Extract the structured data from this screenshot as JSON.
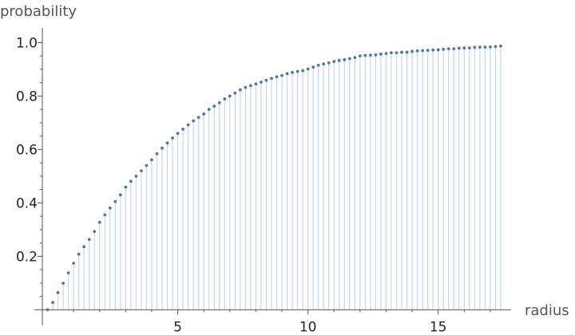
{
  "chart_data": {
    "type": "scatter",
    "style": "discrete points with vertical stems (filled to axis)",
    "xlabel": "radius",
    "ylabel": "probability",
    "xlim": [
      -0.2,
      17.8
    ],
    "ylim": [
      -0.005,
      1.04
    ],
    "x_ticks": [
      5,
      10,
      15
    ],
    "y_ticks": [
      0.2,
      0.4,
      0.6,
      0.8,
      1.0
    ],
    "x_tick_labels": [
      "5",
      "10",
      "15"
    ],
    "y_tick_labels": [
      "0.2",
      "0.4",
      "0.6",
      "0.8",
      "1.0"
    ],
    "series": [
      {
        "color": "#4c78a8",
        "x": [
          0.0,
          0.2,
          0.4,
          0.6,
          0.8,
          1.0,
          1.2,
          1.4,
          1.6,
          1.8,
          2.0,
          2.2,
          2.4,
          2.6,
          2.8,
          3.0,
          3.2,
          3.4,
          3.6,
          3.8,
          4.0,
          4.2,
          4.4,
          4.6,
          4.8,
          5.0,
          5.2,
          5.4,
          5.6,
          5.8,
          6.0,
          6.2,
          6.4,
          6.6,
          6.8,
          7.0,
          7.2,
          7.4,
          7.6,
          7.8,
          8.0,
          8.2,
          8.4,
          8.6,
          8.8,
          9.0,
          9.2,
          9.4,
          9.6,
          9.8,
          10.0,
          10.2,
          10.4,
          10.6,
          10.8,
          11.0,
          11.2,
          11.4,
          11.6,
          11.8,
          12.0,
          12.2,
          12.4,
          12.6,
          12.8,
          13.0,
          13.2,
          13.4,
          13.6,
          13.8,
          14.0,
          14.2,
          14.4,
          14.6,
          14.8,
          15.0,
          15.2,
          15.4,
          15.6,
          15.8,
          16.0,
          16.2,
          16.4,
          16.6,
          16.8,
          17.0,
          17.2,
          17.4
        ],
        "y": [
          0.0,
          0.027,
          0.064,
          0.099,
          0.138,
          0.174,
          0.208,
          0.236,
          0.263,
          0.293,
          0.327,
          0.355,
          0.381,
          0.405,
          0.43,
          0.459,
          0.481,
          0.5,
          0.52,
          0.54,
          0.561,
          0.584,
          0.605,
          0.624,
          0.643,
          0.66,
          0.676,
          0.692,
          0.707,
          0.72,
          0.733,
          0.75,
          0.762,
          0.775,
          0.789,
          0.8,
          0.811,
          0.823,
          0.832,
          0.839,
          0.845,
          0.852,
          0.859,
          0.866,
          0.872,
          0.877,
          0.884,
          0.888,
          0.892,
          0.895,
          0.901,
          0.908,
          0.915,
          0.92,
          0.924,
          0.929,
          0.933,
          0.936,
          0.94,
          0.944,
          0.95,
          0.952,
          0.953,
          0.954,
          0.957,
          0.959,
          0.962,
          0.962,
          0.964,
          0.964,
          0.967,
          0.969,
          0.97,
          0.971,
          0.972,
          0.973,
          0.975,
          0.977,
          0.977,
          0.979,
          0.98,
          0.98,
          0.982,
          0.983,
          0.983,
          0.984,
          0.985,
          0.987
        ]
      }
    ]
  }
}
